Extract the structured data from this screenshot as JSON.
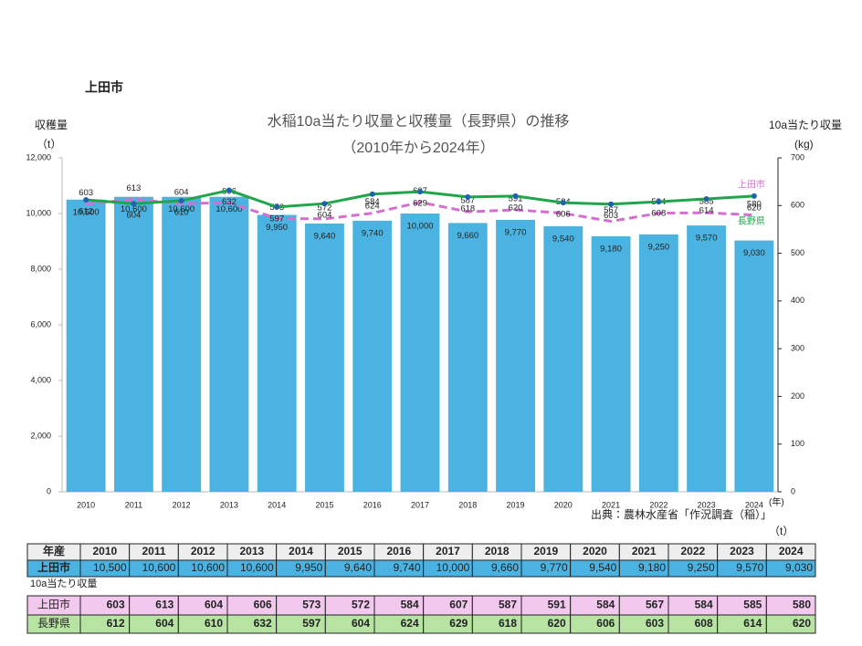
{
  "header": {
    "title": "上田市"
  },
  "chart_data": {
    "type": "bar",
    "title": "水稲10a当たり収量と収穫量（長野県）の推移",
    "subtitle": "（2010年から2024年）",
    "y_label": "収穫量",
    "y_unit": "（t）",
    "y2_label": "10a当たり収量",
    "y2_unit": "(kg)",
    "x_label": "(年)",
    "source": "出典：農林水産省「作況調査（稲）」",
    "categories": [
      "2010",
      "2011",
      "2012",
      "2013",
      "2014",
      "2015",
      "2016",
      "2017",
      "2018",
      "2019",
      "2020",
      "2021",
      "2022",
      "2023",
      "2024"
    ],
    "series": [
      {
        "name": "上田市",
        "type": "bar",
        "color": "#4bb3e1",
        "values": [
          10500,
          10600,
          10600,
          10600,
          9950,
          9640,
          9740,
          10000,
          9660,
          9770,
          9540,
          9180,
          9250,
          9570,
          9030
        ],
        "value_labels": [
          "10,500",
          "10,600",
          "10,600",
          "10,600",
          "9,950",
          "9,640",
          "9,740",
          "10,000",
          "9,660",
          "9,770",
          "9,540",
          "9,180",
          "9,250",
          "9,570",
          "9,030"
        ]
      },
      {
        "name": "上田市",
        "type": "line",
        "axis": "y2",
        "color": "#d46fcf",
        "dashed": true,
        "values": [
          603,
          613,
          604,
          606,
          573,
          572,
          584,
          607,
          587,
          591,
          584,
          567,
          584,
          585,
          580
        ]
      },
      {
        "name": "長野県",
        "type": "line",
        "axis": "y2",
        "color": "#1ea64b",
        "marker_color": "#1f63b0",
        "values": [
          612,
          604,
          610,
          632,
          597,
          604,
          624,
          629,
          618,
          620,
          606,
          603,
          608,
          614,
          620
        ]
      }
    ],
    "ylim": [
      0,
      12000
    ],
    "yticks": [
      0,
      {
        "value": 2000,
        "label": "2,000"
      },
      {
        "value": 4000,
        "label": "4,000"
      },
      {
        "value": 6000,
        "label": "6,000"
      },
      {
        "value": 8000,
        "label": "8,000"
      },
      {
        "value": 10000,
        "label": "10,000"
      },
      {
        "value": 12000,
        "label": "12,000"
      }
    ],
    "y2lim": [
      0,
      700
    ],
    "y2ticks": [
      0,
      100,
      200,
      300,
      400,
      500,
      600,
      700
    ],
    "grid": false
  },
  "table": {
    "header": "年産",
    "unit": "（t）",
    "yield_label": "10a当たり収量"
  }
}
